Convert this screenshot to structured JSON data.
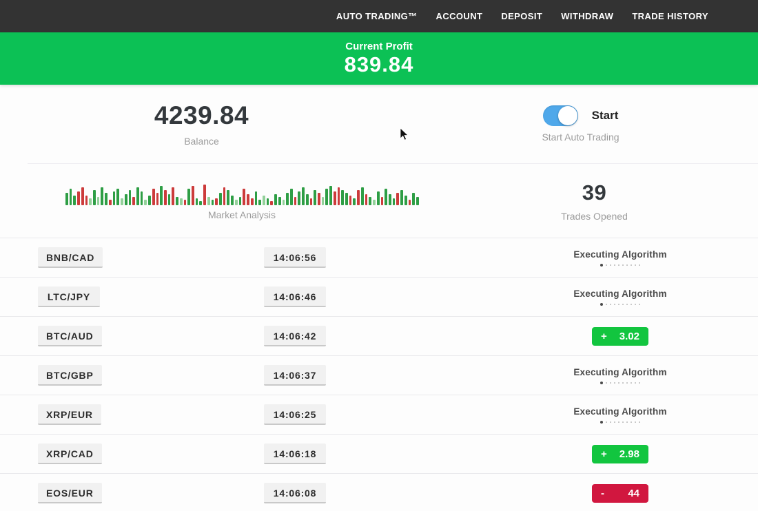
{
  "nav": {
    "items": [
      "AUTO TRADING™",
      "ACCOUNT",
      "DEPOSIT",
      "WITHDRAW",
      "TRADE HISTORY"
    ]
  },
  "profit_banner": {
    "label": "Current Profit",
    "value": "839.84"
  },
  "account": {
    "balance": "4239.84",
    "balance_label": "Balance",
    "toggle_label": "Start",
    "toggle_caption": "Start Auto Trading",
    "toggle_on": true
  },
  "market": {
    "chart_label": "Market Analysis",
    "trades_opened": "39",
    "trades_opened_label": "Trades Opened",
    "bars": [
      "g18",
      "g24",
      "g14",
      "r20",
      "r26",
      "r14",
      "G10",
      "g22",
      "G12",
      "g26",
      "g18",
      "r8",
      "g20",
      "g24",
      "G10",
      "g16",
      "g22",
      "r12",
      "g26",
      "g20",
      "G8",
      "g14",
      "r24",
      "r18",
      "g28",
      "r22",
      "g16",
      "r26",
      "g12",
      "G10",
      "r8",
      "g24",
      "r28",
      "g10",
      "g6",
      "r30",
      "G12",
      "g8",
      "r10",
      "g18",
      "r26",
      "g22",
      "g14",
      "G8",
      "g12",
      "r24",
      "r16",
      "r10",
      "g20",
      "g8",
      "G14",
      "g10",
      "r6",
      "g16",
      "g12",
      "G8",
      "g18",
      "g24",
      "r12",
      "g20",
      "g26",
      "g16",
      "r10",
      "g22",
      "r18",
      "G12",
      "g24",
      "g28",
      "r20",
      "r26",
      "g22",
      "g18",
      "r14",
      "g10",
      "r22",
      "g26",
      "r16",
      "g12",
      "G8",
      "g20",
      "r12",
      "g24",
      "g16",
      "g10",
      "r18",
      "g22",
      "g14",
      "r8",
      "g18",
      "g12"
    ]
  },
  "trades": [
    {
      "pair": "BNB/CAD",
      "time": "14:06:56",
      "status": "executing",
      "status_label": "Executing Algorithm"
    },
    {
      "pair": "LTC/JPY",
      "time": "14:06:46",
      "status": "executing",
      "status_label": "Executing Algorithm"
    },
    {
      "pair": "BTC/AUD",
      "time": "14:06:42",
      "status": "profit",
      "sign": "+",
      "value": "3.02"
    },
    {
      "pair": "BTC/GBP",
      "time": "14:06:37",
      "status": "executing",
      "status_label": "Executing Algorithm"
    },
    {
      "pair": "XRP/EUR",
      "time": "14:06:25",
      "status": "executing",
      "status_label": "Executing Algorithm"
    },
    {
      "pair": "XRP/CAD",
      "time": "14:06:18",
      "status": "profit",
      "sign": "+",
      "value": "2.98"
    },
    {
      "pair": "EOS/EUR",
      "time": "14:06:08",
      "status": "loss",
      "sign": "-",
      "value": "44"
    }
  ],
  "colors": {
    "nav_bg": "#333333",
    "banner_bg": "#0cc155",
    "badge_green": "#12c53f",
    "badge_red": "#d1173f",
    "toggle_blue": "#4fa8ea",
    "bar": {
      "g": "#2e9e45",
      "r": "#cc3b3b",
      "G": "#93d19a",
      "R": "#e39a9a"
    }
  }
}
